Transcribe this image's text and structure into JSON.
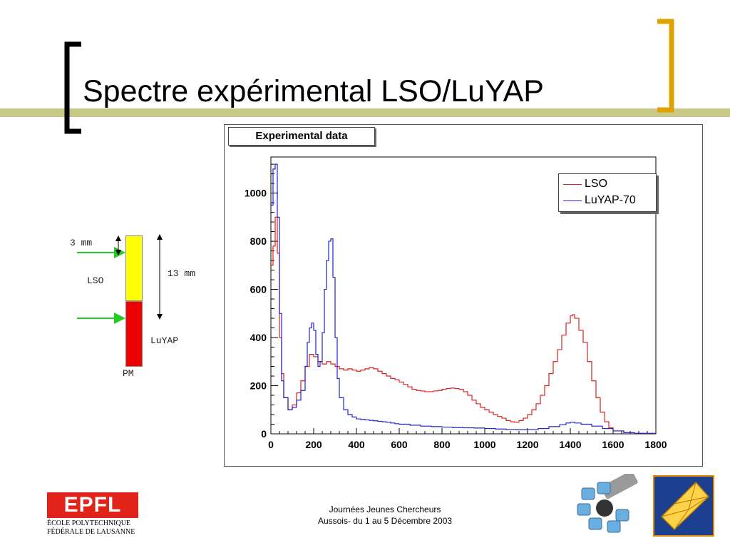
{
  "slide": {
    "title": "Spectre expérimental LSO/LuYAP",
    "footer_line1": "Journées Jeunes Chercheurs",
    "footer_line2": "Aussois- du 1 au 5 Décembre 2003",
    "logo_text": "EPFL",
    "logo_line1": "ÉCOLE POLYTECHNIQUE",
    "logo_line2": "FÉDÉRALE DE LAUSANNE"
  },
  "detector": {
    "label_3mm": "3 mm",
    "label_13mm": "13 mm",
    "label_lso": "LSO",
    "label_luyap": "LuYAP",
    "label_pm": "PM",
    "colors": {
      "lso": "#ffff00",
      "luyap": "#ee0000",
      "arrow": "#22cc22"
    }
  },
  "chart_data": {
    "type": "line",
    "title": "Experimental data",
    "xlim": [
      0,
      1800
    ],
    "ylim": [
      0,
      1150
    ],
    "x_ticks": [
      0,
      200,
      400,
      600,
      800,
      1000,
      1200,
      1400,
      1600,
      1800
    ],
    "y_ticks": [
      0,
      200,
      400,
      600,
      800,
      1000
    ],
    "legend_position": "top-right",
    "series": [
      {
        "name": "LSO",
        "color": "#dd2222",
        "points": [
          [
            0,
            700
          ],
          [
            10,
            780
          ],
          [
            20,
            900
          ],
          [
            30,
            750
          ],
          [
            40,
            400
          ],
          [
            50,
            250
          ],
          [
            60,
            150
          ],
          [
            80,
            100
          ],
          [
            100,
            120
          ],
          [
            120,
            170
          ],
          [
            140,
            220
          ],
          [
            160,
            280
          ],
          [
            180,
            330
          ],
          [
            200,
            320
          ],
          [
            220,
            300
          ],
          [
            240,
            290
          ],
          [
            260,
            300
          ],
          [
            280,
            290
          ],
          [
            300,
            280
          ],
          [
            320,
            270
          ],
          [
            340,
            265
          ],
          [
            360,
            270
          ],
          [
            380,
            265
          ],
          [
            400,
            260
          ],
          [
            420,
            265
          ],
          [
            440,
            270
          ],
          [
            460,
            275
          ],
          [
            480,
            270
          ],
          [
            500,
            260
          ],
          [
            520,
            250
          ],
          [
            540,
            240
          ],
          [
            560,
            230
          ],
          [
            580,
            225
          ],
          [
            600,
            215
          ],
          [
            620,
            205
          ],
          [
            640,
            195
          ],
          [
            660,
            185
          ],
          [
            680,
            180
          ],
          [
            700,
            178
          ],
          [
            720,
            175
          ],
          [
            740,
            175
          ],
          [
            760,
            178
          ],
          [
            780,
            180
          ],
          [
            800,
            185
          ],
          [
            820,
            188
          ],
          [
            840,
            190
          ],
          [
            860,
            188
          ],
          [
            880,
            185
          ],
          [
            900,
            175
          ],
          [
            920,
            160
          ],
          [
            940,
            140
          ],
          [
            960,
            125
          ],
          [
            980,
            110
          ],
          [
            1000,
            100
          ],
          [
            1020,
            90
          ],
          [
            1040,
            80
          ],
          [
            1060,
            72
          ],
          [
            1080,
            65
          ],
          [
            1100,
            55
          ],
          [
            1120,
            50
          ],
          [
            1140,
            48
          ],
          [
            1160,
            55
          ],
          [
            1180,
            65
          ],
          [
            1200,
            80
          ],
          [
            1220,
            100
          ],
          [
            1240,
            125
          ],
          [
            1260,
            160
          ],
          [
            1280,
            200
          ],
          [
            1300,
            250
          ],
          [
            1320,
            300
          ],
          [
            1340,
            350
          ],
          [
            1360,
            410
          ],
          [
            1380,
            460
          ],
          [
            1400,
            490
          ],
          [
            1410,
            495
          ],
          [
            1420,
            480
          ],
          [
            1440,
            430
          ],
          [
            1460,
            380
          ],
          [
            1480,
            300
          ],
          [
            1500,
            220
          ],
          [
            1520,
            150
          ],
          [
            1540,
            90
          ],
          [
            1560,
            50
          ],
          [
            1580,
            25
          ],
          [
            1600,
            12
          ],
          [
            1650,
            5
          ],
          [
            1700,
            2
          ],
          [
            1800,
            0
          ]
        ]
      },
      {
        "name": "LuYAP-70",
        "color": "#2222cc",
        "points": [
          [
            0,
            950
          ],
          [
            10,
            1100
          ],
          [
            20,
            1120
          ],
          [
            30,
            900
          ],
          [
            40,
            500
          ],
          [
            50,
            220
          ],
          [
            60,
            150
          ],
          [
            80,
            100
          ],
          [
            100,
            110
          ],
          [
            120,
            140
          ],
          [
            140,
            180
          ],
          [
            160,
            280
          ],
          [
            170,
            380
          ],
          [
            180,
            440
          ],
          [
            190,
            460
          ],
          [
            200,
            430
          ],
          [
            210,
            330
          ],
          [
            220,
            280
          ],
          [
            230,
            300
          ],
          [
            240,
            420
          ],
          [
            250,
            600
          ],
          [
            260,
            720
          ],
          [
            270,
            800
          ],
          [
            280,
            810
          ],
          [
            290,
            650
          ],
          [
            300,
            400
          ],
          [
            310,
            230
          ],
          [
            320,
            150
          ],
          [
            340,
            100
          ],
          [
            360,
            80
          ],
          [
            380,
            70
          ],
          [
            400,
            62
          ],
          [
            420,
            60
          ],
          [
            440,
            58
          ],
          [
            460,
            56
          ],
          [
            480,
            54
          ],
          [
            500,
            52
          ],
          [
            520,
            50
          ],
          [
            540,
            48
          ],
          [
            560,
            45
          ],
          [
            580,
            42
          ],
          [
            600,
            40
          ],
          [
            650,
            36
          ],
          [
            700,
            32
          ],
          [
            750,
            30
          ],
          [
            800,
            28
          ],
          [
            850,
            26
          ],
          [
            900,
            25
          ],
          [
            950,
            24
          ],
          [
            1000,
            22
          ],
          [
            1050,
            20
          ],
          [
            1100,
            18
          ],
          [
            1150,
            17
          ],
          [
            1200,
            18
          ],
          [
            1250,
            22
          ],
          [
            1300,
            30
          ],
          [
            1350,
            38
          ],
          [
            1380,
            45
          ],
          [
            1400,
            48
          ],
          [
            1420,
            45
          ],
          [
            1450,
            40
          ],
          [
            1500,
            32
          ],
          [
            1550,
            22
          ],
          [
            1600,
            12
          ],
          [
            1650,
            5
          ],
          [
            1700,
            2
          ],
          [
            1800,
            0
          ]
        ]
      }
    ]
  }
}
